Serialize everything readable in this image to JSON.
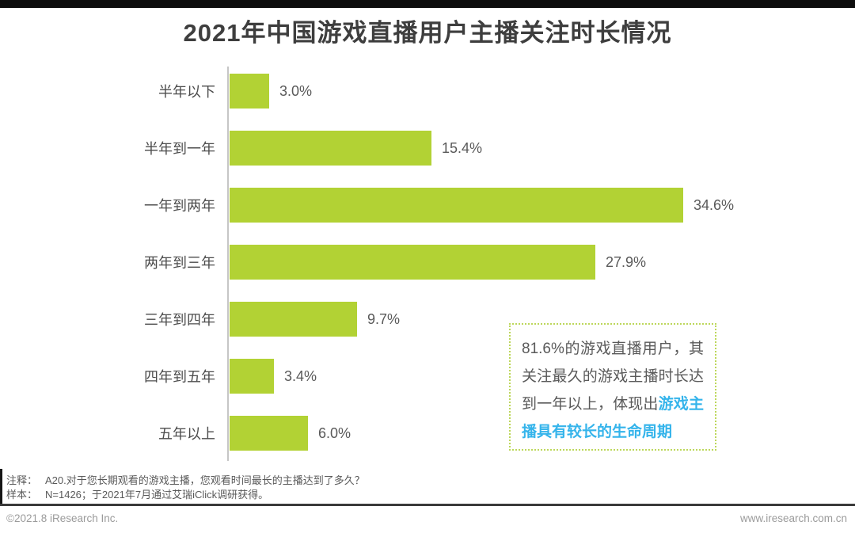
{
  "page": {
    "title": "2021年中国游戏直播用户主播关注时长情况"
  },
  "chart_data": {
    "type": "bar",
    "orientation": "horizontal",
    "title": "2021年中国游戏直播用户主播关注时长情况",
    "categories": [
      "半年以下",
      "半年到一年",
      "一年到两年",
      "两年到三年",
      "三年到四年",
      "四年到五年",
      "五年以上"
    ],
    "values": [
      3.0,
      15.4,
      34.6,
      27.9,
      9.7,
      3.4,
      6.0
    ],
    "value_labels": [
      "3.0%",
      "15.4%",
      "34.6%",
      "27.9%",
      "9.7%",
      "3.4%",
      "6.0%"
    ],
    "xlabel": "",
    "ylabel": "",
    "xlim": [
      0,
      36
    ],
    "grid": false,
    "legend": false,
    "bar_color": "#b2d234",
    "axis_color": "#c6c6c6"
  },
  "annotation": {
    "text_normal": "81.6%的游戏直播用户，其关注最久的游戏主播时长达到一年以上，体现出",
    "text_highlight": "游戏主播具有较长的生命周期",
    "highlight_color": "#35b4eb",
    "border_color": "#bdd75b"
  },
  "notes": {
    "note_label": "注释：",
    "note_text": "A20.对于您长期观看的游戏主播，您观看时间最长的主播达到了多久？",
    "sample_label": "样本：",
    "sample_text": "N=1426；于2021年7月通过艾瑞iClick调研获得。"
  },
  "footer": {
    "copyright": "©2021.8 iResearch Inc.",
    "website": "www.iresearch.com.cn"
  },
  "colors": {
    "bar": "#b2d234",
    "title_text": "#3e3e3e",
    "axis_line": "#c6c6c6",
    "annotation_highlight": "#35b4eb",
    "annotation_border": "#bdd75b",
    "top_strip": "#0d0d0d"
  }
}
